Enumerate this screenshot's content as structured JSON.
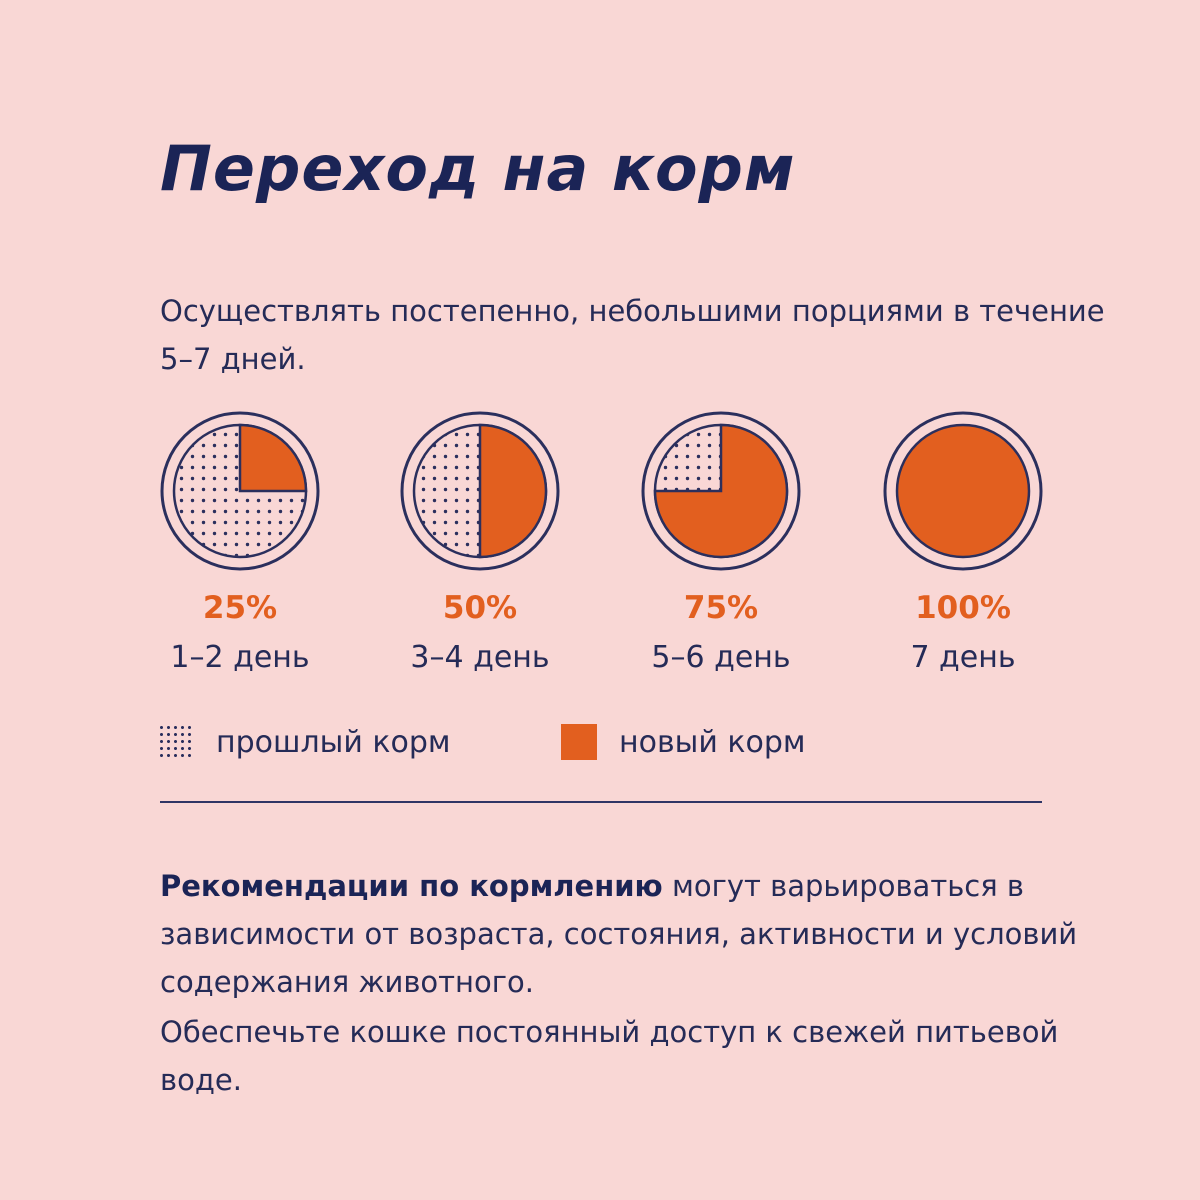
{
  "title": "Переход на корм",
  "intro": "Осуществлять постепенно, небольшими порциями в течение 5–7 дней.",
  "colors": {
    "background": "#f9d7d5",
    "new_food": "#e25f1f",
    "ink": "#1b2456",
    "ring": "#2b2f5d"
  },
  "chart_data": {
    "type": "pie",
    "unit": "%",
    "categories": [
      "1–2 день",
      "3–4 день",
      "5–6 день",
      "7 день"
    ],
    "series": [
      {
        "name": "прошлый корм",
        "pattern": "dotted",
        "values": [
          75,
          50,
          25,
          0
        ]
      },
      {
        "name": "новый корм",
        "color": "#e25f1f",
        "values": [
          25,
          50,
          75,
          100
        ]
      }
    ],
    "pies": [
      {
        "label": "25%",
        "day": "1–2 день",
        "new_share": 25
      },
      {
        "label": "50%",
        "day": "3–4 день",
        "new_share": 50
      },
      {
        "label": "75%",
        "day": "5–6 день",
        "new_share": 75
      },
      {
        "label": "100%",
        "day": "7 день",
        "new_share": 100
      }
    ],
    "legend": {
      "old": "прошлый корм",
      "new": "новый корм",
      "position": "bottom"
    }
  },
  "recommendation": {
    "bold": "Рекомендации по кормлению",
    "rest": " могут варьироваться в зависимости от возраста, состояния, активности и условий содержания животного."
  },
  "water_note": "Обеспечьте кошке постоянный доступ к свежей питьевой воде."
}
